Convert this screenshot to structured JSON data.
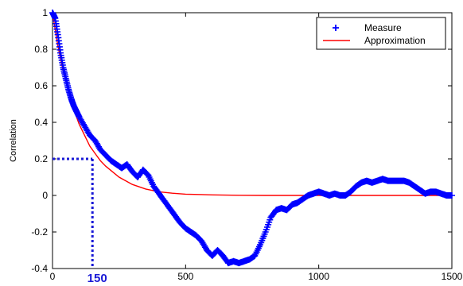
{
  "chart_data": {
    "type": "line",
    "title": "",
    "xlabel": "",
    "ylabel": "Correlation",
    "xlim": [
      0,
      1500
    ],
    "ylim": [
      -0.4,
      1
    ],
    "xticks": [
      0,
      500,
      1000,
      1500
    ],
    "yticks": [
      -0.4,
      -0.2,
      0,
      0.2,
      0.4,
      0.6,
      0.8,
      1
    ],
    "xtick_labels": [
      "0",
      "500",
      "1000",
      "1500"
    ],
    "ytick_labels": [
      "-0.4",
      "-0.2",
      "0",
      "0.2",
      "0.4",
      "0.6",
      "0.8",
      "1"
    ],
    "grid": false,
    "legend_position": "top-right",
    "series": [
      {
        "name": "Measure",
        "marker": "+",
        "color": "#0000ff",
        "x": [
          0,
          10,
          20,
          30,
          40,
          50,
          60,
          70,
          80,
          90,
          100,
          120,
          140,
          160,
          180,
          200,
          220,
          240,
          260,
          280,
          300,
          320,
          340,
          360,
          380,
          400,
          420,
          440,
          460,
          480,
          500,
          520,
          540,
          560,
          580,
          600,
          620,
          640,
          660,
          680,
          700,
          720,
          740,
          760,
          780,
          800,
          820,
          840,
          860,
          880,
          900,
          920,
          940,
          960,
          980,
          1000,
          1020,
          1040,
          1060,
          1080,
          1100,
          1120,
          1140,
          1160,
          1180,
          1200,
          1220,
          1240,
          1260,
          1280,
          1300,
          1320,
          1340,
          1360,
          1380,
          1400,
          1420,
          1440,
          1460,
          1480,
          1500
        ],
        "y": [
          1.0,
          0.97,
          0.88,
          0.78,
          0.7,
          0.64,
          0.58,
          0.53,
          0.49,
          0.46,
          0.43,
          0.38,
          0.33,
          0.3,
          0.25,
          0.22,
          0.19,
          0.17,
          0.15,
          0.17,
          0.13,
          0.1,
          0.14,
          0.11,
          0.05,
          0.01,
          -0.03,
          -0.07,
          -0.11,
          -0.15,
          -0.18,
          -0.2,
          -0.22,
          -0.25,
          -0.3,
          -0.33,
          -0.3,
          -0.33,
          -0.37,
          -0.36,
          -0.37,
          -0.36,
          -0.35,
          -0.33,
          -0.27,
          -0.2,
          -0.12,
          -0.08,
          -0.07,
          -0.08,
          -0.05,
          -0.04,
          -0.02,
          0.0,
          0.01,
          0.02,
          0.01,
          0.0,
          0.01,
          0.0,
          0.0,
          0.02,
          0.05,
          0.07,
          0.08,
          0.07,
          0.08,
          0.09,
          0.08,
          0.08,
          0.08,
          0.08,
          0.07,
          0.05,
          0.03,
          0.01,
          0.02,
          0.02,
          0.01,
          0.0,
          0.0
        ]
      },
      {
        "name": "Approximation",
        "marker": "none",
        "color": "#ff0000",
        "x": [
          0,
          20,
          40,
          60,
          80,
          100,
          120,
          140,
          160,
          180,
          200,
          250,
          300,
          350,
          400,
          450,
          500,
          600,
          700,
          800,
          900,
          1000,
          1100,
          1200,
          1300,
          1400,
          1500
        ],
        "y": [
          1.0,
          0.82,
          0.68,
          0.57,
          0.47,
          0.39,
          0.33,
          0.27,
          0.23,
          0.19,
          0.16,
          0.1,
          0.06,
          0.035,
          0.02,
          0.012,
          0.007,
          0.003,
          0.001,
          0.0,
          0.0,
          0.0,
          0.0,
          0.0,
          0.0,
          0.0,
          0.0
        ]
      }
    ],
    "annotations": [
      {
        "label": "150",
        "x": 150,
        "y": 0.2,
        "color": "#1a1ad6",
        "style": "dotted"
      }
    ]
  }
}
